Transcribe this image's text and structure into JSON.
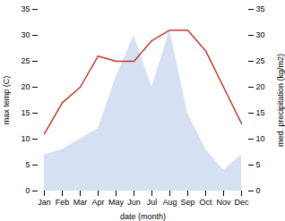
{
  "chart_data": {
    "type": "line",
    "xlabel": "date (month)",
    "ylabel": "max temp (C)",
    "y2label": "med. precipitation (kg/m2)",
    "categories": [
      "Jan",
      "Feb",
      "Mar",
      "Apr",
      "May",
      "Jun",
      "Jul",
      "Aug",
      "Sep",
      "Oct",
      "Nov",
      "Dec"
    ],
    "series": [
      {
        "type": "area",
        "axis": "y2",
        "color": "#b3c6e8",
        "values": [
          7,
          8,
          10,
          12,
          22,
          30,
          20,
          31,
          15,
          8,
          4,
          7
        ]
      },
      {
        "type": "line",
        "color": "#c0392b",
        "values": [
          11,
          17,
          20,
          26,
          25,
          25,
          29,
          31,
          31,
          27,
          20,
          13
        ]
      }
    ],
    "ylim": [
      0,
      35
    ],
    "yticks": [
      0,
      5,
      10,
      15,
      20,
      25,
      30,
      35
    ],
    "y2lim": [
      0,
      35
    ],
    "y2ticks": [
      0,
      5,
      10,
      15,
      20,
      25,
      30,
      35
    ],
    "grid": false
  }
}
